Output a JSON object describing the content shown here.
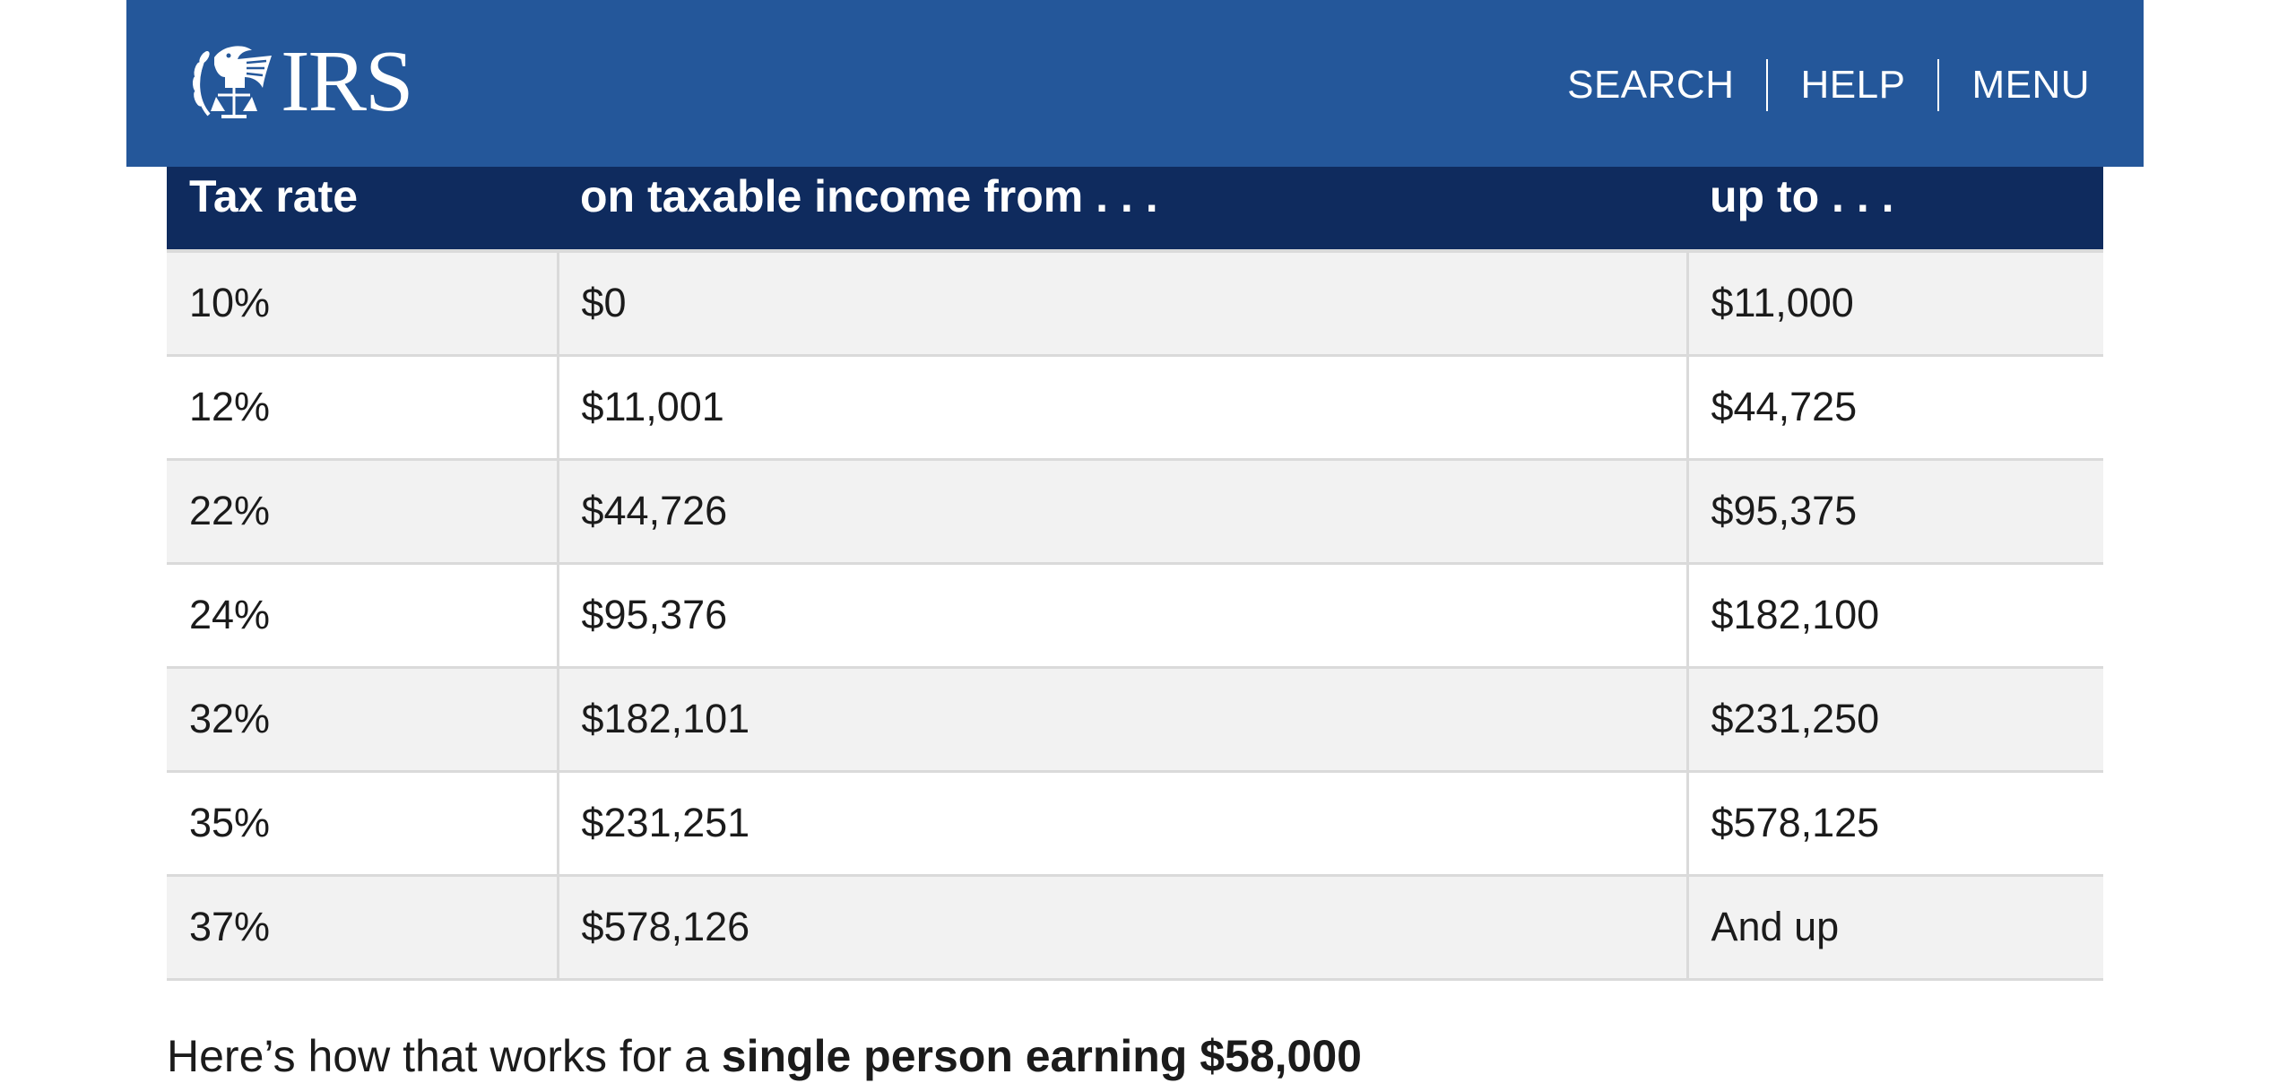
{
  "header": {
    "logo_text": "IRS",
    "nav": {
      "search": "SEARCH",
      "help": "HELP",
      "menu": "MENU"
    },
    "colors": {
      "header_bg": "#24579a",
      "table_header_bg": "#0f2b5e"
    },
    "icons": {
      "logo": "irs-eagle-logo-icon"
    }
  },
  "table": {
    "headers": [
      "Tax rate",
      "on taxable income from . . .",
      "up to . . ."
    ],
    "rows": [
      [
        "10%",
        "$0",
        "$11,000"
      ],
      [
        "12%",
        "$11,001",
        "$44,725"
      ],
      [
        "22%",
        "$44,726",
        "$95,375"
      ],
      [
        "24%",
        "$95,376",
        "$182,100"
      ],
      [
        "32%",
        "$182,101",
        "$231,250"
      ],
      [
        "35%",
        "$231,251",
        "$578,125"
      ],
      [
        "37%",
        "$578,126",
        "And up"
      ]
    ]
  },
  "footer_text": {
    "prefix": "Here’s how that works for a ",
    "bold": "single person earning $58,000"
  }
}
